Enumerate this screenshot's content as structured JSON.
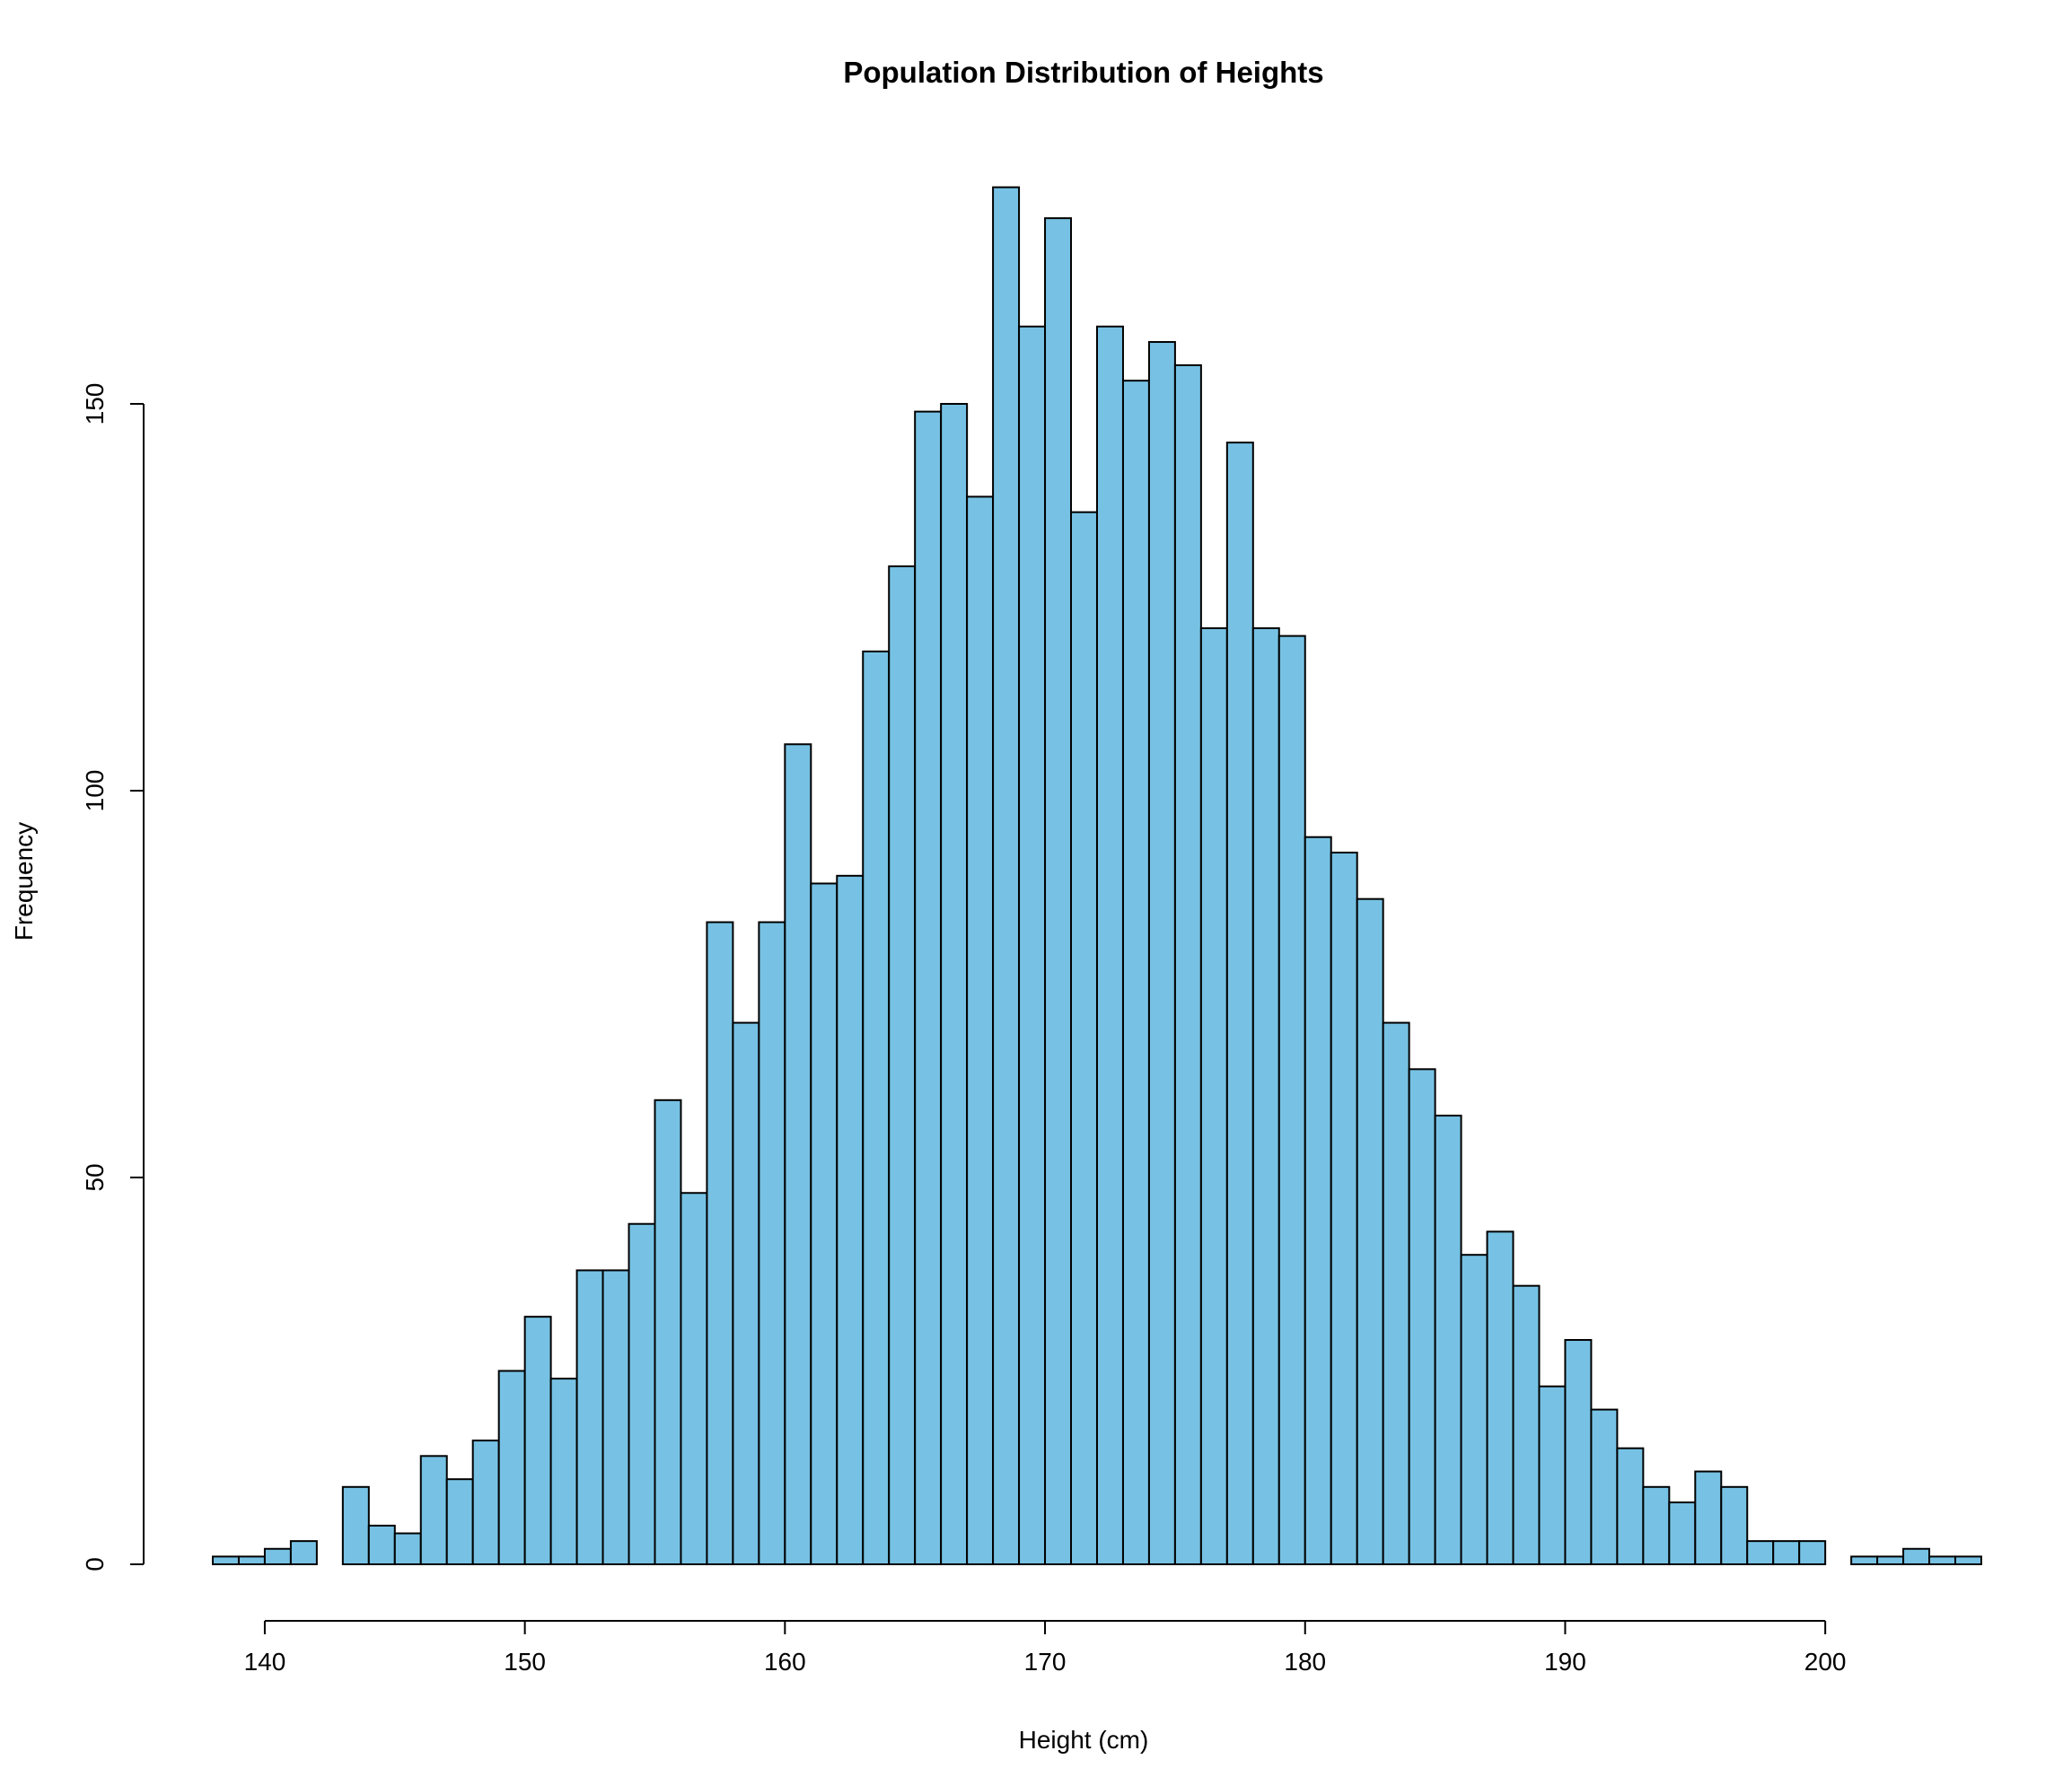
{
  "chart_data": {
    "type": "histogram",
    "title": "Population Distribution of Heights",
    "xlabel": "Height (cm)",
    "ylabel": "Frequency",
    "bar_color": "#77C2E4",
    "edge_color": "#000000",
    "bin_width": 1,
    "x_start": 138,
    "xlim": [
      138,
      205
    ],
    "ylim": [
      0,
      180
    ],
    "x_ticks": [
      140,
      150,
      160,
      170,
      180,
      190,
      200
    ],
    "y_ticks": [
      0,
      50,
      100,
      150
    ],
    "counts": [
      1,
      1,
      2,
      3,
      0,
      10,
      5,
      4,
      14,
      11,
      16,
      25,
      32,
      24,
      38,
      38,
      44,
      60,
      48,
      83,
      70,
      83,
      106,
      88,
      89,
      118,
      129,
      149,
      150,
      138,
      178,
      160,
      174,
      136,
      160,
      153,
      158,
      155,
      121,
      145,
      121,
      120,
      94,
      92,
      86,
      70,
      64,
      58,
      40,
      43,
      36,
      23,
      29,
      20,
      15,
      10,
      8,
      12,
      10,
      3,
      3,
      3,
      0,
      1,
      1,
      2,
      1,
      1
    ],
    "grid": false,
    "legend": "none"
  }
}
